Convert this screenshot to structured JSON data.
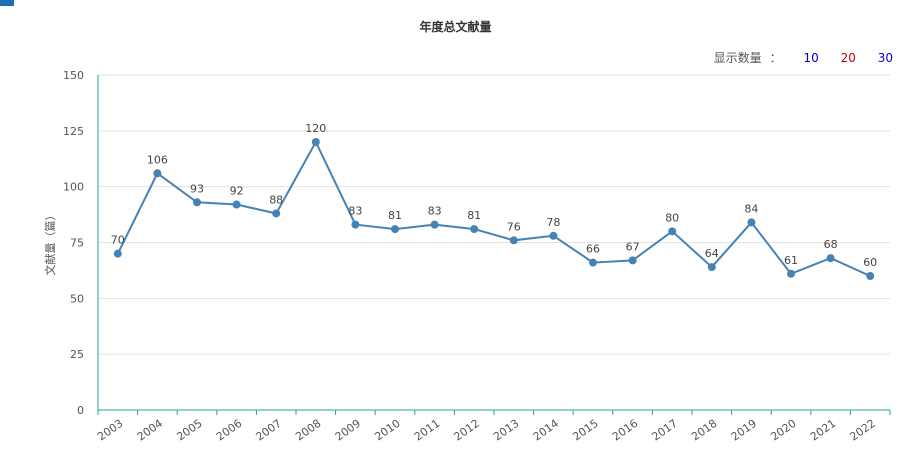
{
  "header": {
    "title": "年度总文献量",
    "show_count": {
      "label": "显示数量",
      "separator": "：",
      "options": [
        {
          "label": "10",
          "color": "#0000cc"
        },
        {
          "label": "20",
          "color": "#cc0000"
        },
        {
          "label": "30",
          "color": "#0000cc"
        }
      ]
    }
  },
  "chart_data": {
    "type": "line",
    "title": "年度总文献量",
    "xlabel": "",
    "ylabel": "文献量（篇）",
    "ylim": [
      0,
      150
    ],
    "yticks": [
      0,
      25,
      50,
      75,
      100,
      125,
      150
    ],
    "grid": true,
    "line_color": "#4682b4",
    "categories": [
      "2003",
      "2004",
      "2005",
      "2006",
      "2007",
      "2008",
      "2009",
      "2010",
      "2011",
      "2012",
      "2013",
      "2014",
      "2015",
      "2016",
      "2017",
      "2018",
      "2019",
      "2020",
      "2021",
      "2022"
    ],
    "series": [
      {
        "values": [
          70,
          106,
          93,
          92,
          88,
          120,
          83,
          81,
          83,
          81,
          76,
          78,
          66,
          67,
          80,
          64,
          84,
          61,
          68,
          60
        ]
      }
    ]
  }
}
